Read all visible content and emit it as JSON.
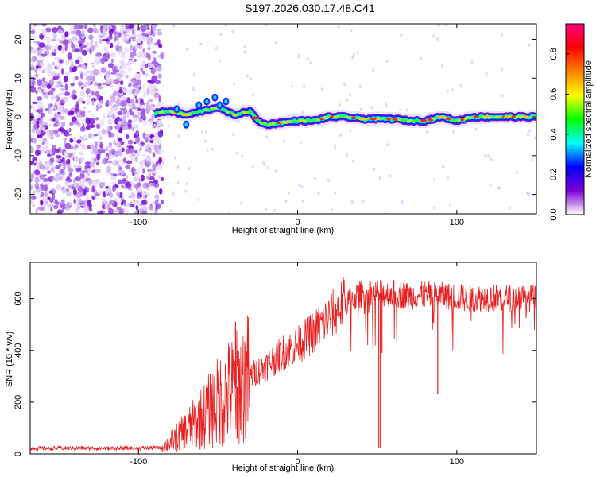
{
  "title": "S197.2026.030.17.48.C41",
  "chart_data": [
    {
      "type": "heatmap",
      "panel": "spectrogram",
      "xlabel": "Height of straight line (km)",
      "ylabel": "Frequency (Hz)",
      "xlim": [
        -168,
        150
      ],
      "ylim": [
        -25,
        24
      ],
      "xticks": [
        "-100",
        "0",
        "100"
      ],
      "yticks": [
        "-20",
        "-10",
        "0",
        "10",
        "20"
      ],
      "noise_region_x": [
        -168,
        -85
      ],
      "signal_start_x": -90,
      "colorbar": {
        "label": "Normalized spectral amplitude",
        "range": [
          0.0,
          0.95
        ],
        "ticks": [
          "0.0",
          "0.2",
          "0.4",
          "0.6",
          "0.8"
        ],
        "colors": [
          "#ffffff",
          "#7b00d4",
          "#0000ff",
          "#00ffff",
          "#00ff00",
          "#ffff00",
          "#ff8000",
          "#ff0000",
          "#ff0080"
        ]
      },
      "ridge": {
        "x": [
          -90,
          -80,
          -70,
          -60,
          -50,
          -40,
          -30,
          -25,
          -20,
          -10,
          0,
          10,
          20,
          30,
          40,
          50,
          60,
          70,
          80,
          90,
          100,
          110,
          120,
          130,
          140,
          150
        ],
        "y": [
          1,
          1.5,
          0.5,
          1.5,
          2.5,
          0.5,
          1.5,
          -1,
          -2,
          -1.5,
          -1,
          -1,
          0,
          0,
          -0.5,
          -0.5,
          -0.5,
          -1,
          -1,
          0,
          -1,
          0,
          0,
          0,
          0,
          0
        ]
      }
    },
    {
      "type": "line",
      "panel": "snr",
      "xlabel": "Height of straight line (km)",
      "ylabel": "SNR (10 * v/v)",
      "xlim": [
        -168,
        150
      ],
      "ylim": [
        0,
        740
      ],
      "xticks": [
        "-100",
        "0",
        "100"
      ],
      "yticks": [
        "0",
        "200",
        "400",
        "600"
      ],
      "line_color": "#e82020",
      "series": [
        {
          "name": "SNR",
          "x": [
            -168,
            -120,
            -100,
            -85,
            -80,
            -70,
            -60,
            -50,
            -45,
            -40,
            -35,
            -30,
            -20,
            -10,
            0,
            10,
            20,
            30,
            40,
            50,
            60,
            70,
            80,
            90,
            100,
            110,
            120,
            130,
            140,
            150
          ],
          "y": [
            22,
            22,
            22,
            25,
            45,
            90,
            140,
            200,
            230,
            250,
            270,
            300,
            340,
            390,
            420,
            470,
            530,
            590,
            615,
            620,
            620,
            610,
            615,
            610,
            605,
            600,
            605,
            600,
            605,
            600
          ],
          "spikes": [
            {
              "x": -39,
              "y": 510
            },
            {
              "x": -38,
              "y": 60
            },
            {
              "x": 51,
              "y": 25
            },
            {
              "x": 52,
              "y": 25
            },
            {
              "x": 53,
              "y": 390
            },
            {
              "x": 88,
              "y": 230
            }
          ]
        }
      ]
    }
  ]
}
